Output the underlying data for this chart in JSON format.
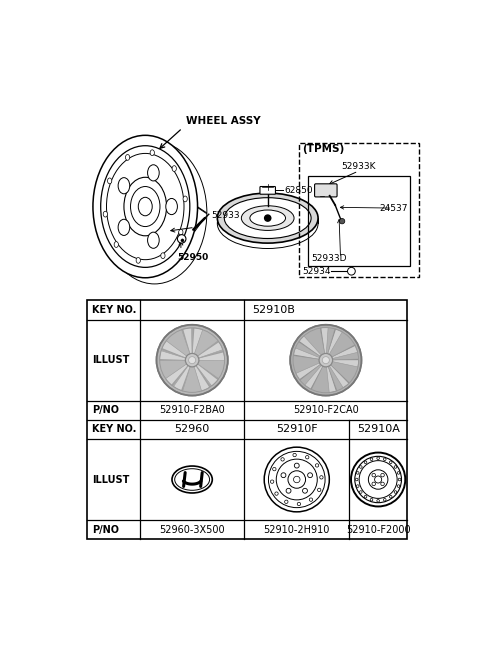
{
  "bg_color": "#ffffff",
  "lc": "#000000",
  "gray_fill": "#c8c8c8",
  "spoke_light": "#d8d8d8",
  "spoke_shadow": "#a0a0a0",
  "top_labels": {
    "wheel_assy": "WHEEL ASSY",
    "p62850": "62850",
    "p52933": "52933",
    "p52950": "52950",
    "tpms": "(TPMS)",
    "p52933K": "52933K",
    "p24537": "24537",
    "p52933D": "52933D",
    "p52934": "52934"
  },
  "table": {
    "keyno1": "KEY NO.",
    "val_52910B": "52910B",
    "illust": "ILLUST",
    "pno": "P/NO",
    "val_F2BA0": "52910-F2BA0",
    "val_F2CA0": "52910-F2CA0",
    "keyno2": "KEY NO.",
    "val_52960": "52960",
    "val_52910F": "52910F",
    "val_52910A": "52910A",
    "val_3X500": "52960-3X500",
    "val_2H910": "52910-2H910",
    "val_F2000": "52910-F2000"
  }
}
